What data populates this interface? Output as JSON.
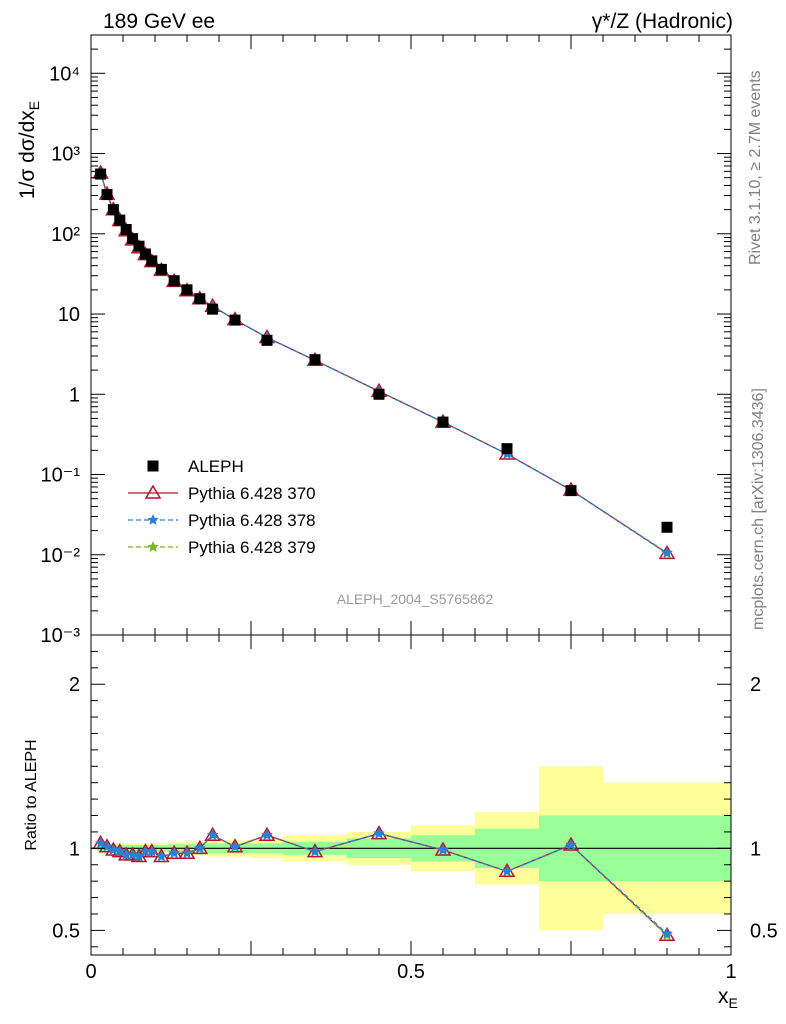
{
  "header": {
    "left": "189 GeV ee",
    "right": "γ*/Z (Hadronic)"
  },
  "side_labels": {
    "rivet": "Rivet 3.1.10, ≥ 2.7M events",
    "mcplots": "mcplots.cern.ch [arXiv:1306.3436]"
  },
  "watermark": "ALEPH_2004_S5765862",
  "colors": {
    "data": "#000000",
    "p370": "#b8112e",
    "p378": "#2a7fd8",
    "p379": "#7fb81e",
    "band_inner": "#99ff99",
    "band_outer": "#ffff99"
  },
  "chart_data": [
    {
      "type": "scatter",
      "panel": "main",
      "ylabel": "1/σ dσ/dx_E",
      "yscale": "log",
      "xlim": [
        0,
        1
      ],
      "ylim": [
        0.001,
        30000
      ],
      "ytick_labels": [
        "10⁻³",
        "10⁻²",
        "10⁻¹",
        "1",
        "10",
        "10²",
        "10³",
        "10⁴"
      ],
      "x": [
        0.015,
        0.025,
        0.035,
        0.045,
        0.055,
        0.065,
        0.075,
        0.085,
        0.095,
        0.11,
        0.13,
        0.15,
        0.17,
        0.19,
        0.225,
        0.275,
        0.35,
        0.45,
        0.55,
        0.65,
        0.75,
        0.9
      ],
      "series": [
        {
          "name": "ALEPH",
          "key": "data",
          "marker": "square",
          "values": [
            555,
            308,
            200,
            148,
            113,
            87,
            70,
            56,
            46,
            36,
            26,
            20,
            15.5,
            11.5,
            8.4,
            4.7,
            2.7,
            1.0,
            0.45,
            0.21,
            0.063,
            0.022
          ]
        },
        {
          "name": "Pythia 6.428 370",
          "key": "p370",
          "marker": "triangle",
          "values": [
            573,
            312,
            199,
            146,
            109,
            84,
            67,
            55,
            45,
            35,
            25.5,
            19.5,
            15.5,
            12.5,
            8.5,
            5.1,
            2.65,
            1.09,
            0.45,
            0.18,
            0.064,
            0.0104
          ]
        },
        {
          "name": "Pythia 6.428 378",
          "key": "p378",
          "marker": "star",
          "values": [
            573,
            312,
            199,
            146,
            109,
            84,
            67,
            55,
            45,
            35,
            25.5,
            19.5,
            15.5,
            12.5,
            8.5,
            5.1,
            2.65,
            1.09,
            0.45,
            0.18,
            0.064,
            0.0106
          ]
        },
        {
          "name": "Pythia 6.428 379",
          "key": "p379",
          "marker": "star",
          "values": [
            573,
            312,
            199,
            146,
            109,
            84,
            67,
            55,
            45,
            35,
            25.5,
            19.5,
            15.5,
            12.5,
            8.5,
            5.1,
            2.65,
            1.09,
            0.45,
            0.18,
            0.064,
            0.0104
          ]
        }
      ]
    },
    {
      "type": "line",
      "panel": "ratio",
      "xlabel": "x_E",
      "ylabel": "Ratio to ALEPH",
      "xlim": [
        0,
        1
      ],
      "ylim": [
        0.35,
        2.3
      ],
      "xtick_labels": [
        "0",
        "0.5",
        "1"
      ],
      "ytick_labels": [
        "0.5",
        "1",
        "2"
      ],
      "x": [
        0.015,
        0.025,
        0.035,
        0.045,
        0.055,
        0.065,
        0.075,
        0.085,
        0.095,
        0.11,
        0.13,
        0.15,
        0.17,
        0.19,
        0.225,
        0.275,
        0.35,
        0.45,
        0.55,
        0.65,
        0.75,
        0.9
      ],
      "series": [
        {
          "name": "Pythia 6.428 370",
          "key": "p370",
          "marker": "triangle",
          "values": [
            1.03,
            1.01,
            0.99,
            0.98,
            0.96,
            0.96,
            0.95,
            0.98,
            0.98,
            0.95,
            0.97,
            0.97,
            1.0,
            1.08,
            1.01,
            1.08,
            0.98,
            1.09,
            0.99,
            0.86,
            1.02,
            0.47
          ]
        },
        {
          "name": "Pythia 6.428 378",
          "key": "p378",
          "marker": "star",
          "values": [
            1.03,
            1.01,
            0.99,
            0.98,
            0.96,
            0.96,
            0.95,
            0.98,
            0.98,
            0.95,
            0.97,
            0.97,
            1.0,
            1.08,
            1.01,
            1.08,
            0.98,
            1.09,
            0.99,
            0.86,
            1.02,
            0.48
          ]
        },
        {
          "name": "Pythia 6.428 379",
          "key": "p379",
          "marker": "star",
          "values": [
            1.03,
            1.01,
            0.99,
            0.98,
            0.96,
            0.96,
            0.95,
            0.98,
            0.98,
            0.95,
            0.97,
            0.97,
            1.0,
            1.08,
            1.01,
            1.08,
            0.98,
            1.09,
            0.99,
            0.86,
            1.02,
            0.47
          ]
        }
      ],
      "uncertainty_bands": {
        "bin_edges": [
          0.01,
          0.02,
          0.03,
          0.04,
          0.05,
          0.06,
          0.07,
          0.08,
          0.09,
          0.1,
          0.12,
          0.14,
          0.16,
          0.18,
          0.2,
          0.25,
          0.3,
          0.4,
          0.5,
          0.6,
          0.7,
          0.8,
          1.0
        ],
        "inner_half_width": [
          0.02,
          0.02,
          0.02,
          0.02,
          0.02,
          0.02,
          0.02,
          0.02,
          0.02,
          0.02,
          0.025,
          0.025,
          0.025,
          0.03,
          0.03,
          0.03,
          0.04,
          0.06,
          0.08,
          0.12,
          0.2,
          0.2
        ],
        "outer_half_width": [
          0.03,
          0.03,
          0.03,
          0.03,
          0.03,
          0.03,
          0.03,
          0.03,
          0.03,
          0.03,
          0.04,
          0.04,
          0.04,
          0.05,
          0.05,
          0.06,
          0.08,
          0.1,
          0.14,
          0.22,
          0.5,
          0.4
        ]
      }
    }
  ]
}
